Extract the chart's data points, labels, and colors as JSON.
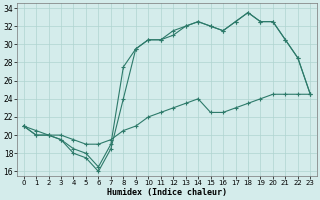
{
  "xlabel": "Humidex (Indice chaleur)",
  "xlim": [
    -0.5,
    23.5
  ],
  "ylim": [
    15.5,
    34.5
  ],
  "xticks": [
    0,
    1,
    2,
    3,
    4,
    5,
    6,
    7,
    8,
    9,
    10,
    11,
    12,
    13,
    14,
    15,
    16,
    17,
    18,
    19,
    20,
    21,
    22,
    23
  ],
  "yticks": [
    16,
    18,
    20,
    22,
    24,
    26,
    28,
    30,
    32,
    34
  ],
  "background_color": "#d4eceb",
  "grid_color": "#afd4d0",
  "line_color": "#2d7a6a",
  "line1_x": [
    0,
    1,
    2,
    3,
    4,
    5,
    6,
    7,
    8,
    9,
    10,
    11,
    12,
    13,
    14,
    15,
    16,
    17,
    18,
    19,
    20,
    21,
    22,
    23
  ],
  "line1_y": [
    21.0,
    20.0,
    20.0,
    19.5,
    18.5,
    18.0,
    16.5,
    19.0,
    27.5,
    29.5,
    30.5,
    30.5,
    31.0,
    32.0,
    32.5,
    32.0,
    31.5,
    32.5,
    33.5,
    32.5,
    32.5,
    30.5,
    28.5,
    24.5
  ],
  "line2_x": [
    0,
    1,
    2,
    3,
    4,
    5,
    6,
    7,
    8,
    9,
    10,
    11,
    12,
    13,
    14,
    15,
    16,
    17,
    18,
    19,
    20,
    21,
    22,
    23
  ],
  "line2_y": [
    21.0,
    20.0,
    20.0,
    19.5,
    18.0,
    17.5,
    16.0,
    18.5,
    24.0,
    29.5,
    30.5,
    30.5,
    31.5,
    32.0,
    32.5,
    32.0,
    31.5,
    32.5,
    33.5,
    32.5,
    32.5,
    30.5,
    28.5,
    24.5
  ],
  "line3_x": [
    0,
    1,
    2,
    3,
    4,
    5,
    6,
    7,
    8,
    9,
    10,
    11,
    12,
    13,
    14,
    15,
    16,
    17,
    18,
    19,
    20,
    21,
    22,
    23
  ],
  "line3_y": [
    21.0,
    20.5,
    20.0,
    20.0,
    19.5,
    19.0,
    19.0,
    19.5,
    20.5,
    21.0,
    22.0,
    22.5,
    23.0,
    23.5,
    24.0,
    22.5,
    22.5,
    23.0,
    23.5,
    24.0,
    24.5,
    24.5,
    24.5,
    24.5
  ]
}
